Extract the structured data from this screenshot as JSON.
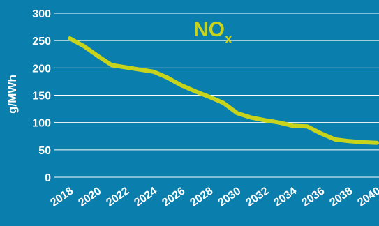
{
  "chart_data": {
    "type": "line",
    "title": "NO",
    "title_subscript": "x",
    "ylabel": "g/MWh",
    "xlabel": "",
    "ylim": [
      0,
      300
    ],
    "xlim": [
      2018,
      2040
    ],
    "y_ticks": [
      "0",
      "50",
      "100",
      "150",
      "200",
      "250",
      "300"
    ],
    "x_ticks": [
      "2018",
      "2020",
      "2022",
      "2024",
      "2026",
      "2028",
      "2030",
      "2032",
      "2034",
      "2036",
      "2038",
      "2040"
    ],
    "grid": "horizontal",
    "legend": "none",
    "background_color": "#0a7eac",
    "line_color": "#c8d41c",
    "series": [
      {
        "x": [
          2018,
          2019,
          2020,
          2021,
          2022,
          2023,
          2024,
          2025,
          2026,
          2027,
          2028,
          2029,
          2030,
          2031,
          2032,
          2033,
          2034,
          2035,
          2036,
          2037,
          2038,
          2039,
          2040
        ],
        "values": [
          254,
          240,
          222,
          205,
          201,
          197,
          193,
          182,
          168,
          157,
          147,
          136,
          117,
          109,
          104,
          100,
          94,
          93,
          80,
          69,
          66,
          64,
          63
        ]
      }
    ]
  }
}
